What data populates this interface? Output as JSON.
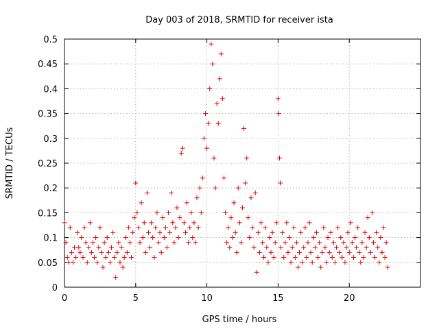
{
  "chart_data": {
    "type": "scatter",
    "title": "Day 003 of 2018, SRMTID for receiver ista",
    "xlabel": "GPS time / hours",
    "ylabel": "SRMTID / TECUs",
    "xlim": [
      0,
      25
    ],
    "ylim": [
      0,
      0.5
    ],
    "xticks": [
      0,
      5,
      10,
      15,
      20
    ],
    "yticks": [
      0,
      0.05,
      0.1,
      0.15,
      0.2,
      0.25,
      0.3,
      0.35,
      0.4,
      0.45,
      0.5
    ],
    "grid": true,
    "marker": "plus",
    "color": "#e00000",
    "series": [
      {
        "points": [
          [
            0.0,
            0.13
          ],
          [
            0.1,
            0.09
          ],
          [
            0.2,
            0.06
          ],
          [
            0.3,
            0.05
          ],
          [
            0.4,
            0.12
          ],
          [
            0.5,
            0.07
          ],
          [
            0.6,
            0.05
          ],
          [
            0.7,
            0.08
          ],
          [
            0.8,
            0.06
          ],
          [
            0.9,
            0.11
          ],
          [
            1.0,
            0.08
          ],
          [
            1.1,
            0.07
          ],
          [
            1.2,
            0.1
          ],
          [
            1.3,
            0.06
          ],
          [
            1.4,
            0.12
          ],
          [
            1.5,
            0.09
          ],
          [
            1.6,
            0.05
          ],
          [
            1.7,
            0.08
          ],
          [
            1.8,
            0.13
          ],
          [
            1.9,
            0.07
          ],
          [
            2.0,
            0.09
          ],
          [
            2.1,
            0.06
          ],
          [
            2.2,
            0.1
          ],
          [
            2.3,
            0.05
          ],
          [
            2.4,
            0.08
          ],
          [
            2.5,
            0.12
          ],
          [
            2.6,
            0.07
          ],
          [
            2.7,
            0.04
          ],
          [
            2.8,
            0.09
          ],
          [
            2.9,
            0.06
          ],
          [
            3.0,
            0.1
          ],
          [
            3.1,
            0.07
          ],
          [
            3.2,
            0.05
          ],
          [
            3.3,
            0.08
          ],
          [
            3.4,
            0.11
          ],
          [
            3.5,
            0.06
          ],
          [
            3.6,
            0.02
          ],
          [
            3.7,
            0.07
          ],
          [
            3.8,
            0.09
          ],
          [
            3.9,
            0.05
          ],
          [
            4.0,
            0.08
          ],
          [
            4.1,
            0.04
          ],
          [
            4.2,
            0.06
          ],
          [
            4.3,
            0.1
          ],
          [
            4.4,
            0.07
          ],
          [
            4.5,
            0.12
          ],
          [
            4.6,
            0.09
          ],
          [
            4.7,
            0.06
          ],
          [
            4.8,
            0.11
          ],
          [
            4.9,
            0.14
          ],
          [
            5.0,
            0.21
          ],
          [
            5.1,
            0.15
          ],
          [
            5.2,
            0.12
          ],
          [
            5.3,
            0.09
          ],
          [
            5.4,
            0.17
          ],
          [
            5.5,
            0.1
          ],
          [
            5.6,
            0.13
          ],
          [
            5.7,
            0.07
          ],
          [
            5.8,
            0.19
          ],
          [
            5.9,
            0.11
          ],
          [
            6.0,
            0.08
          ],
          [
            6.1,
            0.13
          ],
          [
            6.2,
            0.1
          ],
          [
            6.3,
            0.06
          ],
          [
            6.4,
            0.12
          ],
          [
            6.5,
            0.15
          ],
          [
            6.6,
            0.09
          ],
          [
            6.7,
            0.11
          ],
          [
            6.8,
            0.07
          ],
          [
            6.9,
            0.14
          ],
          [
            7.0,
            0.1
          ],
          [
            7.1,
            0.12
          ],
          [
            7.2,
            0.08
          ],
          [
            7.3,
            0.15
          ],
          [
            7.4,
            0.11
          ],
          [
            7.5,
            0.19
          ],
          [
            7.6,
            0.13
          ],
          [
            7.7,
            0.09
          ],
          [
            7.8,
            0.12
          ],
          [
            7.9,
            0.16
          ],
          [
            8.0,
            0.1
          ],
          [
            8.1,
            0.14
          ],
          [
            8.2,
            0.27
          ],
          [
            8.3,
            0.28
          ],
          [
            8.4,
            0.13
          ],
          [
            8.5,
            0.11
          ],
          [
            8.6,
            0.17
          ],
          [
            8.7,
            0.09
          ],
          [
            8.8,
            0.12
          ],
          [
            8.9,
            0.15
          ],
          [
            9.0,
            0.1
          ],
          [
            9.1,
            0.13
          ],
          [
            9.2,
            0.09
          ],
          [
            9.3,
            0.18
          ],
          [
            9.4,
            0.12
          ],
          [
            9.5,
            0.2
          ],
          [
            9.6,
            0.15
          ],
          [
            9.7,
            0.22
          ],
          [
            9.8,
            0.3
          ],
          [
            9.9,
            0.35
          ],
          [
            10.0,
            0.28
          ],
          [
            10.1,
            0.33
          ],
          [
            10.2,
            0.4
          ],
          [
            10.3,
            0.49
          ],
          [
            10.4,
            0.45
          ],
          [
            10.5,
            0.26
          ],
          [
            10.6,
            0.2
          ],
          [
            10.7,
            0.37
          ],
          [
            10.8,
            0.33
          ],
          [
            10.9,
            0.42
          ],
          [
            11.0,
            0.47
          ],
          [
            11.1,
            0.38
          ],
          [
            11.2,
            0.22
          ],
          [
            11.3,
            0.15
          ],
          [
            11.4,
            0.09
          ],
          [
            11.5,
            0.12
          ],
          [
            11.6,
            0.08
          ],
          [
            11.7,
            0.14
          ],
          [
            11.8,
            0.1
          ],
          [
            11.9,
            0.17
          ],
          [
            12.0,
            0.11
          ],
          [
            12.1,
            0.07
          ],
          [
            12.2,
            0.2
          ],
          [
            12.3,
            0.13
          ],
          [
            12.4,
            0.09
          ],
          [
            12.5,
            0.16
          ],
          [
            12.6,
            0.32
          ],
          [
            12.7,
            0.21
          ],
          [
            12.8,
            0.26
          ],
          [
            12.9,
            0.14
          ],
          [
            13.0,
            0.1
          ],
          [
            13.1,
            0.18
          ],
          [
            13.2,
            0.12
          ],
          [
            13.3,
            0.08
          ],
          [
            13.4,
            0.19
          ],
          [
            13.5,
            0.03
          ],
          [
            13.6,
            0.11
          ],
          [
            13.7,
            0.07
          ],
          [
            13.8,
            0.13
          ],
          [
            13.9,
            0.09
          ],
          [
            14.0,
            0.06
          ],
          [
            14.1,
            0.12
          ],
          [
            14.2,
            0.08
          ],
          [
            14.3,
            0.05
          ],
          [
            14.4,
            0.1
          ],
          [
            14.5,
            0.07
          ],
          [
            14.6,
            0.11
          ],
          [
            14.7,
            0.06
          ],
          [
            14.8,
            0.09
          ],
          [
            14.9,
            0.13
          ],
          [
            15.0,
            0.38
          ],
          [
            15.05,
            0.35
          ],
          [
            15.1,
            0.26
          ],
          [
            15.15,
            0.21
          ],
          [
            15.2,
            0.08
          ],
          [
            15.3,
            0.11
          ],
          [
            15.4,
            0.06
          ],
          [
            15.5,
            0.09
          ],
          [
            15.6,
            0.13
          ],
          [
            15.7,
            0.07
          ],
          [
            15.8,
            0.1
          ],
          [
            15.9,
            0.05
          ],
          [
            16.0,
            0.08
          ],
          [
            16.1,
            0.12
          ],
          [
            16.2,
            0.06
          ],
          [
            16.3,
            0.09
          ],
          [
            16.4,
            0.04
          ],
          [
            16.5,
            0.07
          ],
          [
            16.6,
            0.11
          ],
          [
            16.7,
            0.05
          ],
          [
            16.8,
            0.08
          ],
          [
            16.9,
            0.12
          ],
          [
            17.0,
            0.06
          ],
          [
            17.1,
            0.09
          ],
          [
            17.2,
            0.13
          ],
          [
            17.3,
            0.07
          ],
          [
            17.4,
            0.05
          ],
          [
            17.5,
            0.1
          ],
          [
            17.6,
            0.08
          ],
          [
            17.7,
            0.11
          ],
          [
            17.8,
            0.06
          ],
          [
            17.9,
            0.09
          ],
          [
            18.0,
            0.04
          ],
          [
            18.1,
            0.07
          ],
          [
            18.2,
            0.12
          ],
          [
            18.3,
            0.08
          ],
          [
            18.4,
            0.05
          ],
          [
            18.5,
            0.1
          ],
          [
            18.6,
            0.07
          ],
          [
            18.7,
            0.11
          ],
          [
            18.8,
            0.06
          ],
          [
            18.9,
            0.09
          ],
          [
            19.0,
            0.05
          ],
          [
            19.1,
            0.08
          ],
          [
            19.2,
            0.12
          ],
          [
            19.3,
            0.07
          ],
          [
            19.4,
            0.1
          ],
          [
            19.5,
            0.06
          ],
          [
            19.6,
            0.09
          ],
          [
            19.7,
            0.05
          ],
          [
            19.8,
            0.08
          ],
          [
            19.9,
            0.11
          ],
          [
            20.0,
            0.07
          ],
          [
            20.1,
            0.13
          ],
          [
            20.2,
            0.09
          ],
          [
            20.3,
            0.06
          ],
          [
            20.4,
            0.1
          ],
          [
            20.5,
            0.08
          ],
          [
            20.6,
            0.12
          ],
          [
            20.7,
            0.07
          ],
          [
            20.8,
            0.05
          ],
          [
            20.9,
            0.09
          ],
          [
            21.0,
            0.06
          ],
          [
            21.1,
            0.11
          ],
          [
            21.2,
            0.08
          ],
          [
            21.3,
            0.14
          ],
          [
            21.4,
            0.1
          ],
          [
            21.5,
            0.07
          ],
          [
            21.6,
            0.15
          ],
          [
            21.7,
            0.09
          ],
          [
            21.8,
            0.06
          ],
          [
            21.9,
            0.11
          ],
          [
            22.0,
            0.08
          ],
          [
            22.1,
            0.05
          ],
          [
            22.2,
            0.1
          ],
          [
            22.3,
            0.07
          ],
          [
            22.4,
            0.12
          ],
          [
            22.5,
            0.06
          ],
          [
            22.6,
            0.09
          ],
          [
            22.7,
            0.04
          ]
        ]
      }
    ]
  }
}
